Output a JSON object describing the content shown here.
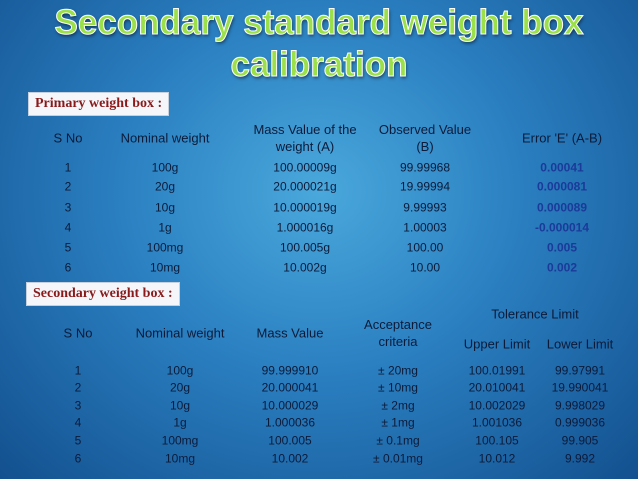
{
  "title": "Secondary standard weight box calibration",
  "primary": {
    "label": "Primary weight box :",
    "headers": [
      "S No",
      "Nominal weight",
      "Mass Value of the weight (A)",
      "Observed Value (B)",
      "Error 'E' (A-B)"
    ],
    "rows": [
      [
        "1",
        "100g",
        "100.00009g",
        "99.99968",
        "0.00041"
      ],
      [
        "2",
        "20g",
        "20.000021g",
        "19.99994",
        "0.000081"
      ],
      [
        "3",
        "10g",
        "10.000019g",
        "9.99993",
        "0.000089"
      ],
      [
        "4",
        "1g",
        "1.000016g",
        "1.00003",
        "-0.000014"
      ],
      [
        "5",
        "100mg",
        "100.005g",
        "100.00",
        "0.005"
      ],
      [
        "6",
        "10mg",
        "10.002g",
        "10.00",
        "0.002"
      ]
    ]
  },
  "secondary": {
    "label": "Secondary weight box :",
    "headers": [
      "S No",
      "Nominal weight",
      "Mass Value",
      "Acceptance criteria",
      "Upper Limit",
      "Lower Limit"
    ],
    "group_header": "Tolerance Limit",
    "rows": [
      [
        "1",
        "100g",
        "99.999910",
        "± 20mg",
        "100.01991",
        "99.97991"
      ],
      [
        "2",
        "20g",
        "20.000041",
        "± 10mg",
        "20.010041",
        "19.990041"
      ],
      [
        "3",
        "10g",
        "10.000029",
        "± 2mg",
        "10.002029",
        "9.998029"
      ],
      [
        "4",
        "1g",
        "1.000036",
        "± 1mg",
        "1.001036",
        "0.999036"
      ],
      [
        "5",
        "100mg",
        "100.005",
        "± 0.1mg",
        "100.105",
        "99.905"
      ],
      [
        "6",
        "10mg",
        "10.002",
        "± 0.01mg",
        "10.012",
        "9.992"
      ]
    ]
  }
}
